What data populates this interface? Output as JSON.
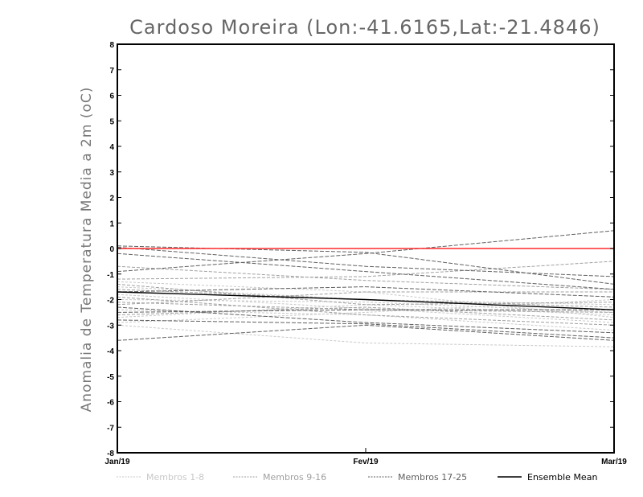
{
  "chart_data": {
    "type": "line",
    "title": "Cardoso Moreira (Lon:-41.6165,Lat:-21.4846)",
    "xlabel": "",
    "ylabel": "Anomalia de Temperatura Media a 2m (oC)",
    "x": [
      "Jan/19",
      "Fev/19",
      "Mar/19"
    ],
    "ylim": [
      -8,
      8
    ],
    "yticks": [
      "8",
      "7",
      "6",
      "5",
      "4",
      "3",
      "2",
      "1",
      "0",
      "-1",
      "-2",
      "-3",
      "-4",
      "-5",
      "-6",
      "-7",
      "-8"
    ],
    "grid": false,
    "legend_position": "bottom",
    "reference_line": {
      "y": 0,
      "color": "#ff2a2a"
    },
    "series": [
      {
        "name": "Membros 1-8",
        "color": "#c8c8c8",
        "dash": "3,2",
        "lines": [
          [
            -3.0,
            -3.7,
            -3.85
          ],
          [
            -2.7,
            -2.2,
            -2.6
          ],
          [
            -2.4,
            -2.6,
            -3.2
          ],
          [
            -2.0,
            -2.1,
            -2.5
          ],
          [
            -1.8,
            -2.35,
            -2.9
          ],
          [
            -1.5,
            -2.0,
            -2.2
          ],
          [
            -2.9,
            -2.5,
            -2.0
          ],
          [
            -1.3,
            -1.7,
            -2.7
          ]
        ]
      },
      {
        "name": "Membros 9-16",
        "color": "#a0a0a0",
        "dash": "4,2",
        "lines": [
          [
            -1.2,
            -1.1,
            -0.5
          ],
          [
            -1.6,
            -2.0,
            -2.3
          ],
          [
            -2.2,
            -1.7,
            -1.7
          ],
          [
            -2.6,
            -2.3,
            -2.8
          ],
          [
            -1.9,
            -2.6,
            -3.0
          ],
          [
            -1.4,
            -2.2,
            -2.1
          ],
          [
            -2.1,
            -2.4,
            -2.5
          ],
          [
            -0.7,
            -1.25,
            -1.6
          ]
        ]
      },
      {
        "name": "Membros 17-25",
        "color": "#606060",
        "dash": "5,2",
        "lines": [
          [
            -0.9,
            -0.2,
            0.7
          ],
          [
            0.1,
            -0.15,
            -1.4
          ],
          [
            -0.2,
            -0.9,
            -1.6
          ],
          [
            -3.6,
            -3.0,
            -3.6
          ],
          [
            -2.3,
            -2.9,
            -3.3
          ],
          [
            -1.7,
            -1.5,
            -1.9
          ],
          [
            -2.5,
            -2.4,
            -2.4
          ],
          [
            0.05,
            -0.7,
            -1.1
          ],
          [
            -2.8,
            -2.95,
            -3.5
          ]
        ]
      },
      {
        "name": "Ensemble Mean",
        "color": "#000000",
        "dash": "",
        "values": [
          -1.7,
          -2.0,
          -2.4
        ]
      }
    ]
  }
}
